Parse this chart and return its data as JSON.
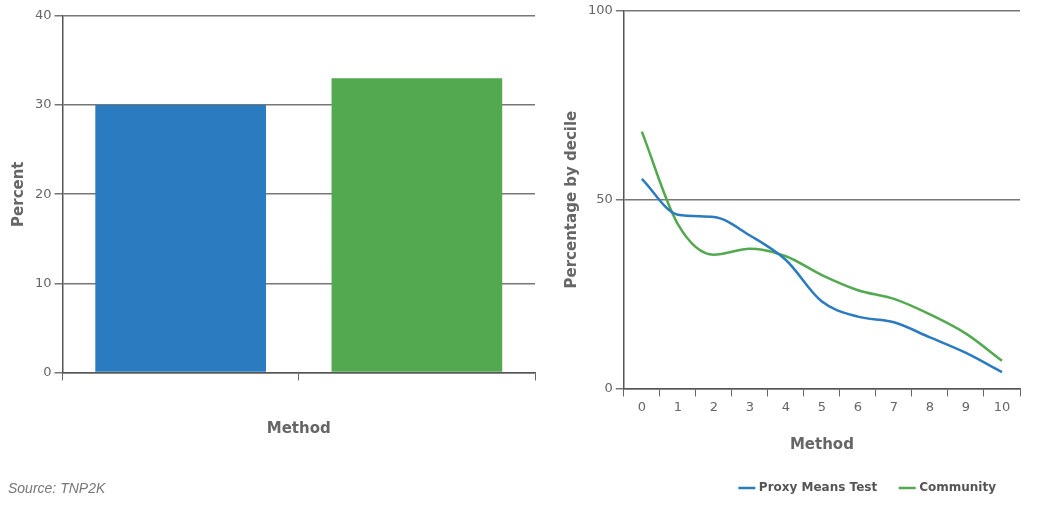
{
  "chart_data": [
    {
      "type": "bar",
      "xlabel": "Method",
      "ylabel": "Percent",
      "categories": [
        null,
        null
      ],
      "values": [
        30,
        33
      ],
      "colors": [
        "#2a7bc0",
        "#52a94f"
      ],
      "ylim": [
        0,
        40
      ],
      "yticks": [
        0,
        10,
        20,
        30,
        40
      ],
      "grid": "y",
      "annotations": [
        "Source: TNP2K"
      ]
    },
    {
      "type": "line",
      "xlabel": "Method",
      "ylabel": "Percentage by decile",
      "categories": [
        "0",
        "1",
        "2",
        "3",
        "4",
        "5",
        "6",
        "7",
        "8",
        "9",
        "10"
      ],
      "ylim": [
        0,
        100
      ],
      "yticks": [
        0,
        50,
        100
      ],
      "grid": "y",
      "legend": "bottom right",
      "marker": "none",
      "series": [
        {
          "name": "Proxy Means Test",
          "color": "#2a7bc0",
          "values": [
            55.5,
            46,
            45.4,
            40.5,
            34,
            23,
            19,
            17.5,
            13.5,
            9.4,
            4.3
          ]
        },
        {
          "name": "Community",
          "color": "#52a94f",
          "values": [
            68,
            43.5,
            35.4,
            37,
            35,
            30,
            26,
            23.7,
            19.6,
            14.5,
            7.3
          ]
        }
      ]
    }
  ]
}
